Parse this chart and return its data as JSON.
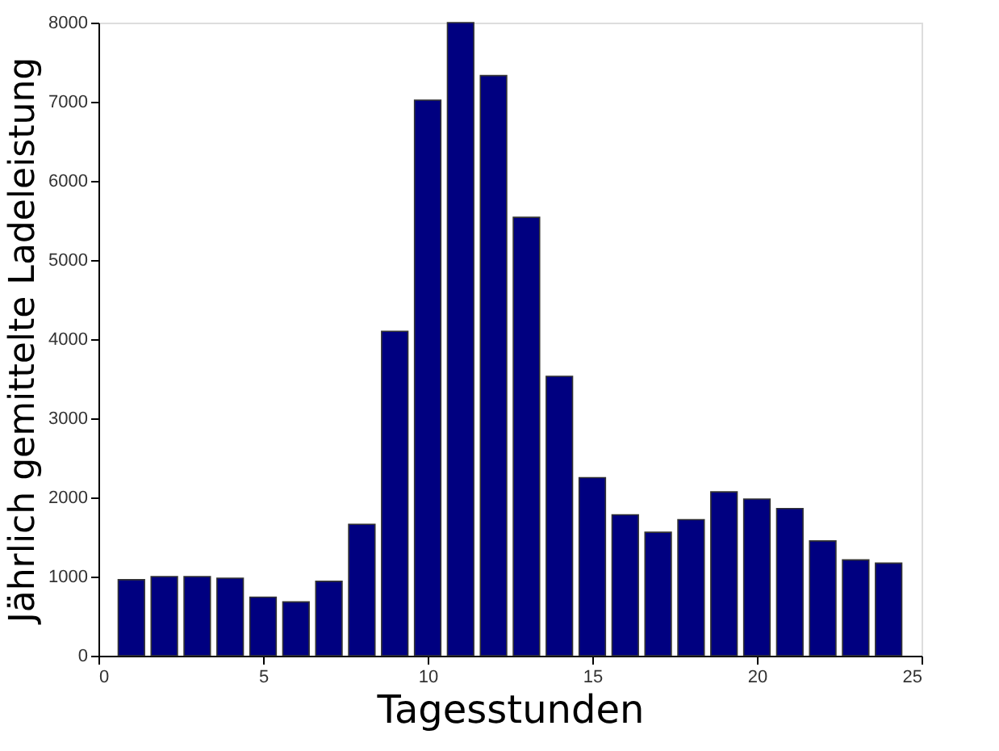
{
  "chart_data": {
    "type": "bar",
    "xlabel": "Tagesstunden",
    "ylabel": "Jährlich gemittelte Ladeleistung",
    "x": [
      1,
      2,
      3,
      4,
      5,
      6,
      7,
      8,
      9,
      10,
      11,
      12,
      13,
      14,
      15,
      16,
      17,
      18,
      19,
      20,
      21,
      22,
      23,
      24
    ],
    "values": [
      960,
      1000,
      1000,
      980,
      740,
      680,
      940,
      1660,
      4100,
      7020,
      8000,
      7330,
      5540,
      3530,
      2250,
      1780,
      1560,
      1720,
      2070,
      1980,
      1860,
      1450,
      1210,
      1170
    ],
    "color": "#000080",
    "xlim": [
      0,
      25
    ],
    "xticks": [
      0,
      5,
      10,
      15,
      20,
      25
    ],
    "ylim": [
      0,
      8000
    ],
    "yticks": [
      0,
      1000,
      2000,
      3000,
      4000,
      5000,
      6000,
      7000,
      8000
    ],
    "grid": false
  }
}
